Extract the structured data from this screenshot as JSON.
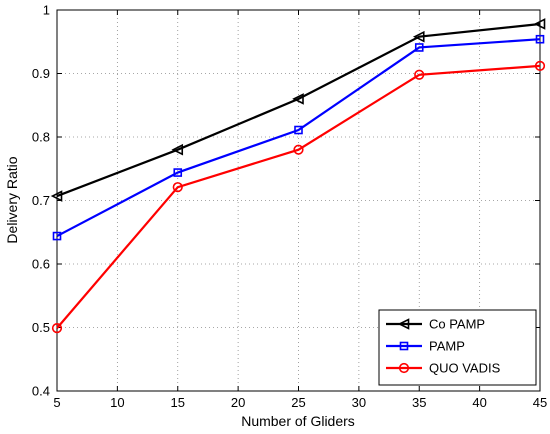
{
  "chart_data": {
    "type": "line",
    "title": "",
    "xlabel": "Number of Gliders",
    "ylabel": "Delivery Ratio",
    "xlim": [
      5,
      45
    ],
    "ylim": [
      0.4,
      1.0
    ],
    "xticks": [
      5,
      10,
      15,
      20,
      25,
      30,
      35,
      40,
      45
    ],
    "yticks": [
      0.4,
      0.5,
      0.6,
      0.7,
      0.8,
      0.9,
      1.0
    ],
    "ytick_labels": [
      "0.4",
      "0.5",
      "0.6",
      "0.7",
      "0.8",
      "0.9",
      "1"
    ],
    "grid": true,
    "legend_position": "bottom-right",
    "x": [
      5,
      15,
      25,
      35,
      45
    ],
    "series": [
      {
        "name": "Co PAMP",
        "values": [
          0.707,
          0.78,
          0.86,
          0.958,
          0.978
        ],
        "color": "#000000",
        "marker": "triangle-left"
      },
      {
        "name": "PAMP",
        "values": [
          0.644,
          0.744,
          0.811,
          0.941,
          0.954
        ],
        "color": "#0000ff",
        "marker": "square"
      },
      {
        "name": "QUO VADIS",
        "values": [
          0.499,
          0.721,
          0.78,
          0.898,
          0.912
        ],
        "color": "#ff0000",
        "marker": "circle"
      }
    ]
  }
}
